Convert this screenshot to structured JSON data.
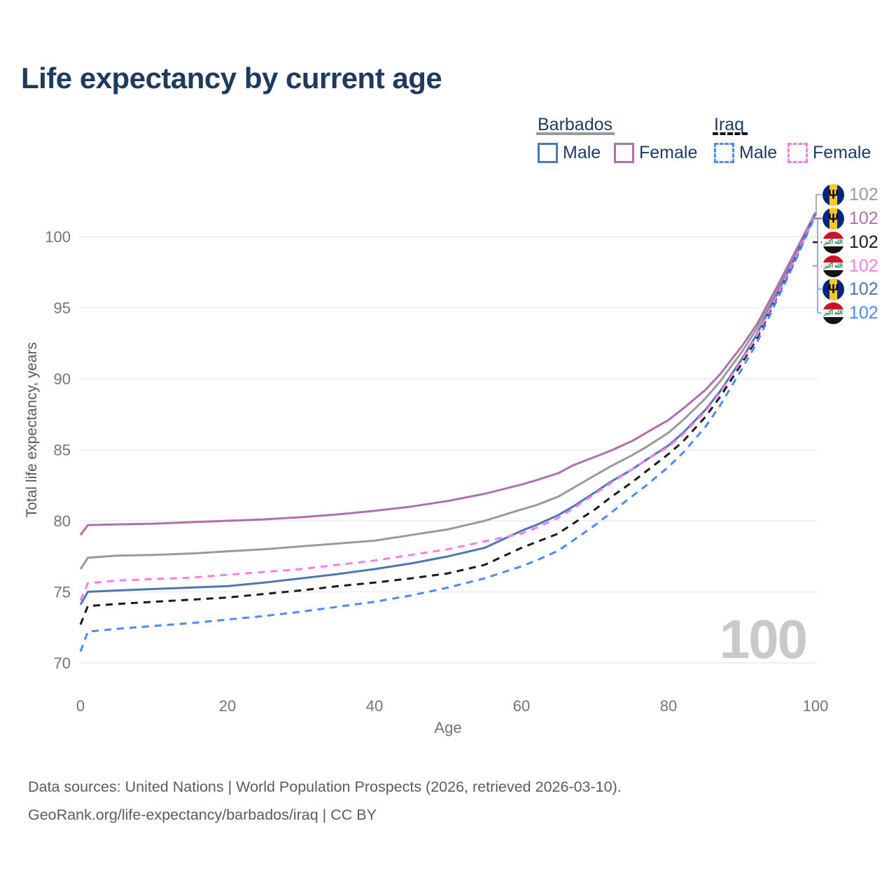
{
  "title": "Life expectancy by current age",
  "legend": {
    "groups": [
      {
        "label": "Barbados",
        "line_style": "solid",
        "line_color": "#9a9a9a",
        "items": [
          {
            "label": "Male",
            "color": "#4b77b5"
          },
          {
            "label": "Female",
            "color": "#b06fad"
          }
        ]
      },
      {
        "label": "Iraq",
        "line_style": "dashed",
        "line_color": "#111111",
        "items": [
          {
            "label": "Male",
            "color": "#4b8af8"
          },
          {
            "label": "Female",
            "color": "#f77ee8"
          }
        ]
      }
    ]
  },
  "chart_data": {
    "type": "line",
    "title": "Life expectancy by current age",
    "xlabel": "Age",
    "ylabel": "Total life expectancy, years",
    "xlim": [
      0,
      100
    ],
    "ylim": [
      70,
      103
    ],
    "xticks": [
      0,
      20,
      40,
      60,
      80,
      100
    ],
    "yticks": [
      70,
      75,
      80,
      85,
      90,
      95,
      100
    ],
    "grid": "horizontal",
    "x": [
      0,
      1,
      5,
      10,
      15,
      20,
      25,
      30,
      35,
      40,
      45,
      50,
      55,
      60,
      62,
      65,
      67,
      70,
      72,
      75,
      77,
      80,
      82,
      85,
      87,
      90,
      92,
      95,
      97,
      100
    ],
    "series": [
      {
        "name": "Barbados Both sexes",
        "country": "Barbados",
        "sex": "Both sexes",
        "color": "#9a9a9a",
        "dashed": false,
        "values": [
          76.6,
          77.4,
          77.55,
          77.6,
          77.7,
          77.85,
          78.0,
          78.2,
          78.4,
          78.6,
          79.0,
          79.4,
          80.0,
          80.8,
          81.1,
          81.7,
          82.3,
          83.2,
          83.8,
          84.6,
          85.2,
          86.2,
          87.1,
          88.6,
          89.8,
          91.9,
          93.5,
          96.4,
          98.5,
          101.7
        ]
      },
      {
        "name": "Barbados Female",
        "country": "Barbados",
        "sex": "Female",
        "color": "#b06fad",
        "dashed": false,
        "values": [
          79.0,
          79.7,
          79.75,
          79.8,
          79.9,
          80.0,
          80.1,
          80.25,
          80.45,
          80.7,
          81.0,
          81.4,
          81.9,
          82.55,
          82.85,
          83.35,
          83.9,
          84.5,
          84.9,
          85.6,
          86.2,
          87.1,
          87.9,
          89.2,
          90.3,
          92.3,
          93.8,
          96.7,
          98.7,
          101.7
        ]
      },
      {
        "name": "Barbados Male",
        "country": "Barbados",
        "sex": "Male",
        "color": "#4b77b5",
        "dashed": false,
        "values": [
          74.1,
          75.0,
          75.1,
          75.2,
          75.3,
          75.4,
          75.65,
          75.95,
          76.25,
          76.6,
          77.0,
          77.5,
          78.1,
          79.3,
          79.7,
          80.4,
          81.0,
          82.0,
          82.7,
          83.6,
          84.3,
          85.3,
          86.2,
          87.8,
          89.1,
          91.4,
          93.1,
          96.2,
          98.3,
          101.6
        ]
      },
      {
        "name": "Iraq Both sexes",
        "country": "Iraq",
        "sex": "Both sexes",
        "color": "#1a1a1a",
        "dashed": true,
        "values": [
          72.7,
          74.0,
          74.15,
          74.3,
          74.45,
          74.6,
          74.85,
          75.1,
          75.4,
          75.65,
          75.95,
          76.3,
          76.9,
          78.1,
          78.5,
          79.1,
          79.8,
          80.8,
          81.6,
          82.7,
          83.5,
          84.7,
          85.6,
          87.3,
          88.7,
          91.1,
          92.8,
          96.0,
          98.1,
          101.6
        ]
      },
      {
        "name": "Iraq Female",
        "country": "Iraq",
        "sex": "Female",
        "color": "#f77ee8",
        "dashed": true,
        "values": [
          74.4,
          75.6,
          75.8,
          75.9,
          76.0,
          76.2,
          76.4,
          76.6,
          76.9,
          77.2,
          77.6,
          78.0,
          78.55,
          79.1,
          79.5,
          80.2,
          80.85,
          81.9,
          82.6,
          83.6,
          84.3,
          85.2,
          86.1,
          87.7,
          89.0,
          91.3,
          93.0,
          96.1,
          98.2,
          101.6
        ]
      },
      {
        "name": "Iraq Male",
        "country": "Iraq",
        "sex": "Male",
        "color": "#4b8af8",
        "dashed": true,
        "values": [
          70.8,
          72.2,
          72.4,
          72.6,
          72.8,
          73.05,
          73.3,
          73.6,
          73.95,
          74.3,
          74.75,
          75.3,
          75.95,
          76.8,
          77.2,
          77.9,
          78.6,
          79.7,
          80.5,
          81.7,
          82.5,
          83.8,
          84.8,
          86.6,
          88.1,
          90.7,
          92.5,
          95.8,
          98.0,
          101.5
        ]
      }
    ],
    "end_labels": [
      {
        "text": "102",
        "color": "#9a9a9a",
        "flag": "barbados",
        "series": "Barbados Both sexes"
      },
      {
        "text": "102",
        "color": "#b06fad",
        "flag": "barbados",
        "series": "Barbados Female"
      },
      {
        "text": "102",
        "color": "#1a1a1a",
        "flag": "iraq",
        "series": "Iraq Both sexes"
      },
      {
        "text": "102",
        "color": "#f77ee8",
        "flag": "iraq",
        "series": "Iraq Female"
      },
      {
        "text": "102",
        "color": "#4b77b5",
        "flag": "barbados",
        "series": "Barbados Male"
      },
      {
        "text": "102",
        "color": "#4b8af8",
        "flag": "iraq",
        "series": "Iraq Male"
      }
    ],
    "annotation_age_counter": "100"
  },
  "watermark": "100",
  "flag_glyphs": {
    "barbados_trident": "Ψ",
    "iraq_script": "الله أكبر"
  },
  "footer": {
    "line1": "Data sources: United Nations | World Population Prospects (2026, retrieved 2026-03-10).",
    "line2": "GeoRank.org/life-expectancy/barbados/iraq | CC BY"
  }
}
